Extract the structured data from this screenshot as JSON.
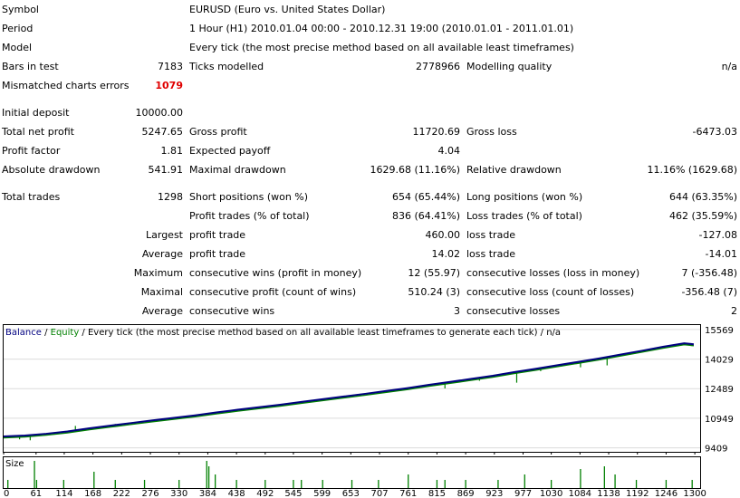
{
  "report": {
    "symbol_label": "Symbol",
    "symbol_value": "EURUSD (Euro vs. United States Dollar)",
    "period_label": "Period",
    "period_value": "1 Hour (H1) 2010.01.04 00:00 - 2010.12.31 19:00 (2010.01.01 - 2011.01.01)",
    "model_label": "Model",
    "model_value": "Every tick (the most precise method based on all available least timeframes)",
    "bars_label": "Bars in test",
    "bars_value": "7183",
    "ticks_label": "Ticks modelled",
    "ticks_value": "2778966",
    "quality_label": "Modelling quality",
    "quality_value": "n/a",
    "mismatch_label": "Mismatched charts errors",
    "mismatch_value": "1079",
    "deposit_label": "Initial deposit",
    "deposit_value": "10000.00",
    "netprofit_label": "Total net profit",
    "netprofit_value": "5247.65",
    "grossprofit_label": "Gross profit",
    "grossprofit_value": "11720.69",
    "grossloss_label": "Gross loss",
    "grossloss_value": "-6473.03",
    "pf_label": "Profit factor",
    "pf_value": "1.81",
    "payoff_label": "Expected payoff",
    "payoff_value": "4.04",
    "absdd_label": "Absolute drawdown",
    "absdd_value": "541.91",
    "maxdd_label": "Maximal drawdown",
    "maxdd_value": "1629.68 (11.16%)",
    "reldd_label": "Relative drawdown",
    "reldd_value": "11.16% (1629.68)",
    "trades_label": "Total trades",
    "trades_value": "1298",
    "short_label": "Short positions (won %)",
    "short_value": "654 (65.44%)",
    "long_label": "Long positions (won %)",
    "long_value": "644 (63.35%)",
    "profittrades_label": "Profit trades (% of total)",
    "profittrades_value": "836 (64.41%)",
    "losstrades_label": "Loss trades (% of total)",
    "losstrades_value": "462 (35.59%)",
    "largest_label": "Largest",
    "largest_profit_label": "profit trade",
    "largest_profit_value": "460.00",
    "largest_loss_label": "loss trade",
    "largest_loss_value": "-127.08",
    "average_label": "Average",
    "average_profit_label": "profit trade",
    "average_profit_value": "14.02",
    "average_loss_label": "loss trade",
    "average_loss_value": "-14.01",
    "maximum_label": "Maximum",
    "maxwins_label": "consecutive wins (profit in money)",
    "maxwins_value": "12 (55.97)",
    "maxlosses_label": "consecutive losses (loss in money)",
    "maxlosses_value": "7 (-356.48)",
    "maximal_label": "Maximal",
    "maxprofit_label": "consecutive profit (count of wins)",
    "maxprofit_value": "510.24 (3)",
    "maxloss_label": "consecutive loss (count of losses)",
    "maxloss_value": "-356.48 (7)",
    "average2_label": "Average",
    "avgwins_label": "consecutive wins",
    "avgwins_value": "3",
    "avglosses_label": "consecutive losses",
    "avglosses_value": "2"
  },
  "chart_data": {
    "type": "line",
    "header_balance": "Balance",
    "header_sep": " / ",
    "header_equity": "Equity",
    "header_rest": " / Every tick (the most precise method based on all available least timeframes to generate each tick) / n/a",
    "size_label": "Size",
    "y_ticks": [
      "15569",
      "14029",
      "12489",
      "10949",
      "9409"
    ],
    "y_tick_values": [
      15569,
      14029,
      12489,
      10949,
      9409
    ],
    "ylim": [
      9200,
      15800
    ],
    "x_ticks": [
      "0",
      "61",
      "114",
      "168",
      "222",
      "276",
      "330",
      "384",
      "438",
      "492",
      "545",
      "599",
      "653",
      "707",
      "761",
      "815",
      "869",
      "923",
      "977",
      "1030",
      "1084",
      "1138",
      "1192",
      "1246",
      "1300"
    ],
    "xlim": [
      0,
      1310
    ],
    "colors": {
      "balance": "#000080",
      "equity": "#008000",
      "size": "#008000",
      "grid": "#dcdcdc",
      "axis_text": "#000000"
    },
    "balance": {
      "x": [
        0,
        40,
        80,
        120,
        160,
        200,
        240,
        280,
        320,
        360,
        400,
        440,
        480,
        520,
        560,
        600,
        640,
        680,
        720,
        760,
        800,
        840,
        880,
        920,
        960,
        1000,
        1040,
        1080,
        1120,
        1160,
        1200,
        1240,
        1280,
        1298
      ],
      "y": [
        10000,
        10050,
        10140,
        10260,
        10420,
        10560,
        10700,
        10840,
        10970,
        11100,
        11250,
        11390,
        11520,
        11650,
        11800,
        11940,
        12080,
        12220,
        12370,
        12520,
        12690,
        12840,
        13000,
        13160,
        13350,
        13520,
        13700,
        13880,
        14060,
        14260,
        14460,
        14670,
        14850,
        14800
      ]
    },
    "equity_dips": [
      {
        "x": 30,
        "y": 9850
      },
      {
        "x": 50,
        "y": 9800
      },
      {
        "x": 120,
        "y": 10200
      },
      {
        "x": 135,
        "y": 10550
      },
      {
        "x": 210,
        "y": 10650
      },
      {
        "x": 290,
        "y": 10900
      },
      {
        "x": 345,
        "y": 11000
      },
      {
        "x": 398,
        "y": 11200
      },
      {
        "x": 470,
        "y": 11500
      },
      {
        "x": 560,
        "y": 11700
      },
      {
        "x": 620,
        "y": 12050
      },
      {
        "x": 665,
        "y": 12200
      },
      {
        "x": 720,
        "y": 12350
      },
      {
        "x": 760,
        "y": 12500
      },
      {
        "x": 815,
        "y": 12750
      },
      {
        "x": 830,
        "y": 12500
      },
      {
        "x": 895,
        "y": 12900
      },
      {
        "x": 965,
        "y": 12800
      },
      {
        "x": 1010,
        "y": 13400
      },
      {
        "x": 1050,
        "y": 13650
      },
      {
        "x": 1085,
        "y": 13600
      },
      {
        "x": 1135,
        "y": 13700
      },
      {
        "x": 1187,
        "y": 14300
      },
      {
        "x": 1290,
        "y": 14850
      }
    ],
    "size_bars": [
      {
        "x": 8,
        "v": 0.3
      },
      {
        "x": 58,
        "v": 1.0
      },
      {
        "x": 62,
        "v": 0.3
      },
      {
        "x": 113,
        "v": 0.3
      },
      {
        "x": 170,
        "v": 0.6
      },
      {
        "x": 210,
        "v": 0.3
      },
      {
        "x": 265,
        "v": 0.3
      },
      {
        "x": 330,
        "v": 0.3
      },
      {
        "x": 382,
        "v": 1.0
      },
      {
        "x": 386,
        "v": 0.8
      },
      {
        "x": 398,
        "v": 0.5
      },
      {
        "x": 438,
        "v": 0.3
      },
      {
        "x": 492,
        "v": 0.3
      },
      {
        "x": 545,
        "v": 0.3
      },
      {
        "x": 560,
        "v": 0.3
      },
      {
        "x": 600,
        "v": 0.3
      },
      {
        "x": 655,
        "v": 0.3
      },
      {
        "x": 705,
        "v": 0.3
      },
      {
        "x": 761,
        "v": 0.5
      },
      {
        "x": 815,
        "v": 0.3
      },
      {
        "x": 830,
        "v": 0.3
      },
      {
        "x": 869,
        "v": 0.3
      },
      {
        "x": 930,
        "v": 0.3
      },
      {
        "x": 980,
        "v": 0.5
      },
      {
        "x": 1030,
        "v": 0.3
      },
      {
        "x": 1085,
        "v": 0.7
      },
      {
        "x": 1130,
        "v": 0.8
      },
      {
        "x": 1150,
        "v": 0.5
      },
      {
        "x": 1190,
        "v": 0.3
      },
      {
        "x": 1246,
        "v": 0.3
      },
      {
        "x": 1295,
        "v": 0.3
      }
    ]
  }
}
